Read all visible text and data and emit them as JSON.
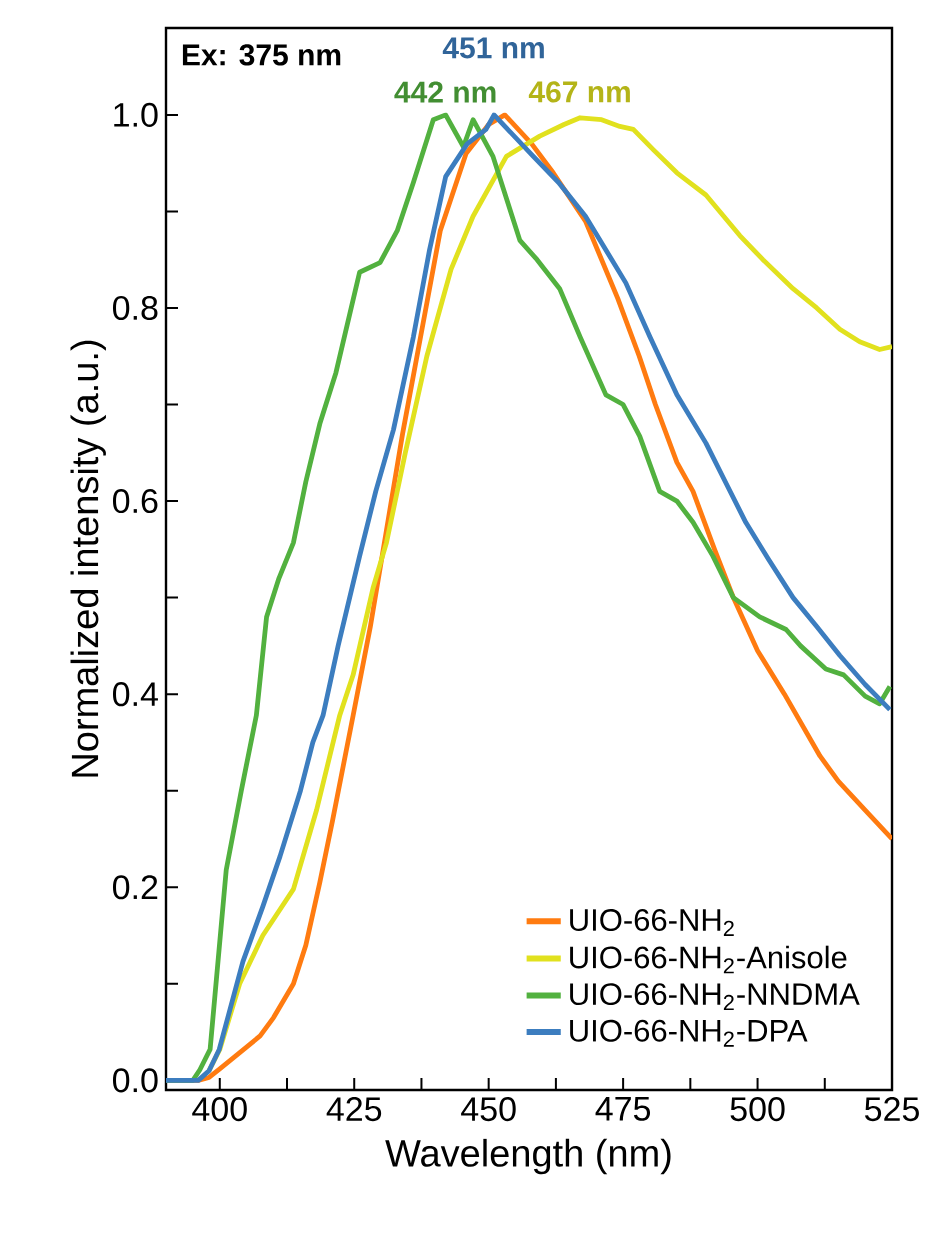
{
  "chart_data": {
    "type": "line",
    "xlabel": "Wavelength (nm)",
    "ylabel": "Normalized intensity (a.u.)",
    "xlim": [
      390,
      525
    ],
    "ylim": [
      -0.01,
      1.09
    ],
    "xticks": [
      {
        "value": 400,
        "label": "400"
      },
      {
        "value": 412.5,
        "label": null
      },
      {
        "value": 425,
        "label": "425"
      },
      {
        "value": 437.5,
        "label": null
      },
      {
        "value": 450,
        "label": "450"
      },
      {
        "value": 462.5,
        "label": null
      },
      {
        "value": 475,
        "label": "475"
      },
      {
        "value": 487.5,
        "label": null
      },
      {
        "value": 500,
        "label": "500"
      },
      {
        "value": 512.5,
        "label": null
      },
      {
        "value": 525,
        "label": "525"
      }
    ],
    "yticks": [
      {
        "value": 0,
        "label": "0.0"
      },
      {
        "value": 0.1,
        "label": null
      },
      {
        "value": 0.2,
        "label": "0.2"
      },
      {
        "value": 0.3,
        "label": null
      },
      {
        "value": 0.4,
        "label": "0.4"
      },
      {
        "value": 0.5,
        "label": null
      },
      {
        "value": 0.6,
        "label": "0.6"
      },
      {
        "value": 0.7,
        "label": null
      },
      {
        "value": 0.8,
        "label": "0.8"
      },
      {
        "value": 0.9,
        "label": null
      },
      {
        "value": 1.0,
        "label": "1.0"
      }
    ],
    "grid": false,
    "legend": "bottom right",
    "marker": "none",
    "line_style": "solid",
    "annotations": [
      "Ex: 375 nm",
      {
        "text": "442 nm",
        "x": 442,
        "y": 1.0
      },
      {
        "text": "467 nm",
        "x": 467,
        "y": 1.0
      },
      {
        "text": "451 nm",
        "x": 451,
        "y": 1.0
      }
    ],
    "series": [
      {
        "name": "UIO-66-NH$_{2}$",
        "color": "#ff7b10",
        "x": [
          390,
          396,
          398,
          400,
          404,
          407.5,
          410,
          413.7,
          416,
          418.6,
          421,
          424.8,
          428,
          431,
          434,
          437,
          441,
          445.8,
          450,
          453,
          458,
          462,
          468,
          474,
          478,
          481,
          485,
          488,
          492,
          495.5,
          500,
          505,
          511.6,
          515,
          520,
          525
        ],
        "values": [
          0,
          0,
          0.003,
          0.012,
          0.03,
          0.046,
          0.065,
          0.1,
          0.14,
          0.205,
          0.27,
          0.378,
          0.47,
          0.57,
          0.67,
          0.76,
          0.88,
          0.96,
          0.99,
          1.0,
          0.97,
          0.94,
          0.89,
          0.81,
          0.75,
          0.7,
          0.64,
          0.61,
          0.55,
          0.5,
          0.445,
          0.4,
          0.336,
          0.31,
          0.28,
          0.25
        ]
      },
      {
        "name": "UIO-66-NH$_{2}$-Anisole",
        "color": "#e1e11e",
        "x": [
          398,
          400,
          403.7,
          408,
          413.7,
          418,
          422.3,
          424.8,
          428.5,
          431,
          434.5,
          438.5,
          443,
          447.1,
          453.3,
          459.5,
          464,
          467,
          471,
          474.4,
          476.9,
          480.6,
          485,
          490.4,
          496.7,
          501,
          506.6,
          511,
          515.3,
          519,
          522.7,
          525
        ],
        "values": [
          0.01,
          0.032,
          0.1,
          0.15,
          0.198,
          0.28,
          0.378,
          0.42,
          0.51,
          0.557,
          0.65,
          0.75,
          0.84,
          0.895,
          0.957,
          0.978,
          0.99,
          0.997,
          0.995,
          0.988,
          0.985,
          0.964,
          0.94,
          0.917,
          0.875,
          0.85,
          0.82,
          0.8,
          0.778,
          0.765,
          0.757,
          0.76
        ]
      },
      {
        "name": "UIO-66-NH$_{2}$-NNDMA",
        "color": "#52b13f",
        "x": [
          390,
          395,
          396.3,
          398.2,
          401.2,
          404,
          406.8,
          408.7,
          411,
          413.7,
          416,
          418.6,
          421.6,
          426,
          429.8,
          433,
          436,
          439.7,
          442,
          445.3,
          447.1,
          450.8,
          455.8,
          459,
          463.2,
          467,
          471.8,
          475,
          478.1,
          481.8,
          485,
          488,
          491.7,
          495.5,
          500.4,
          505.3,
          508,
          512.7,
          516,
          520,
          522.7,
          524.6
        ],
        "values": [
          0,
          0,
          0.011,
          0.032,
          0.218,
          0.3,
          0.378,
          0.48,
          0.52,
          0.557,
          0.62,
          0.68,
          0.733,
          0.837,
          0.847,
          0.88,
          0.93,
          0.995,
          1.0,
          0.967,
          0.995,
          0.957,
          0.87,
          0.85,
          0.82,
          0.77,
          0.71,
          0.7,
          0.667,
          0.61,
          0.6,
          0.578,
          0.543,
          0.5,
          0.48,
          0.467,
          0.45,
          0.426,
          0.42,
          0.398,
          0.39,
          0.408
        ]
      },
      {
        "name": "UIO-66-NH$_{2}$-DPA",
        "color": "#3c7dbf",
        "x": [
          390,
          396,
          398,
          399.9,
          404.3,
          408,
          411.2,
          415,
          417.3,
          419.2,
          422,
          426,
          429,
          432.3,
          436,
          439,
          442,
          446,
          449.5,
          451,
          458.3,
          463,
          468,
          475.5,
          480,
          485,
          490.4,
          494,
          497.8,
          502,
          506.6,
          511,
          515.3,
          520,
          524.6
        ],
        "values": [
          0,
          0,
          0.01,
          0.032,
          0.123,
          0.18,
          0.232,
          0.3,
          0.35,
          0.378,
          0.45,
          0.543,
          0.61,
          0.674,
          0.77,
          0.86,
          0.936,
          0.97,
          0.985,
          1.0,
          0.957,
          0.93,
          0.895,
          0.826,
          0.77,
          0.71,
          0.66,
          0.62,
          0.578,
          0.54,
          0.5,
          0.47,
          0.44,
          0.41,
          0.384
        ]
      }
    ]
  }
}
